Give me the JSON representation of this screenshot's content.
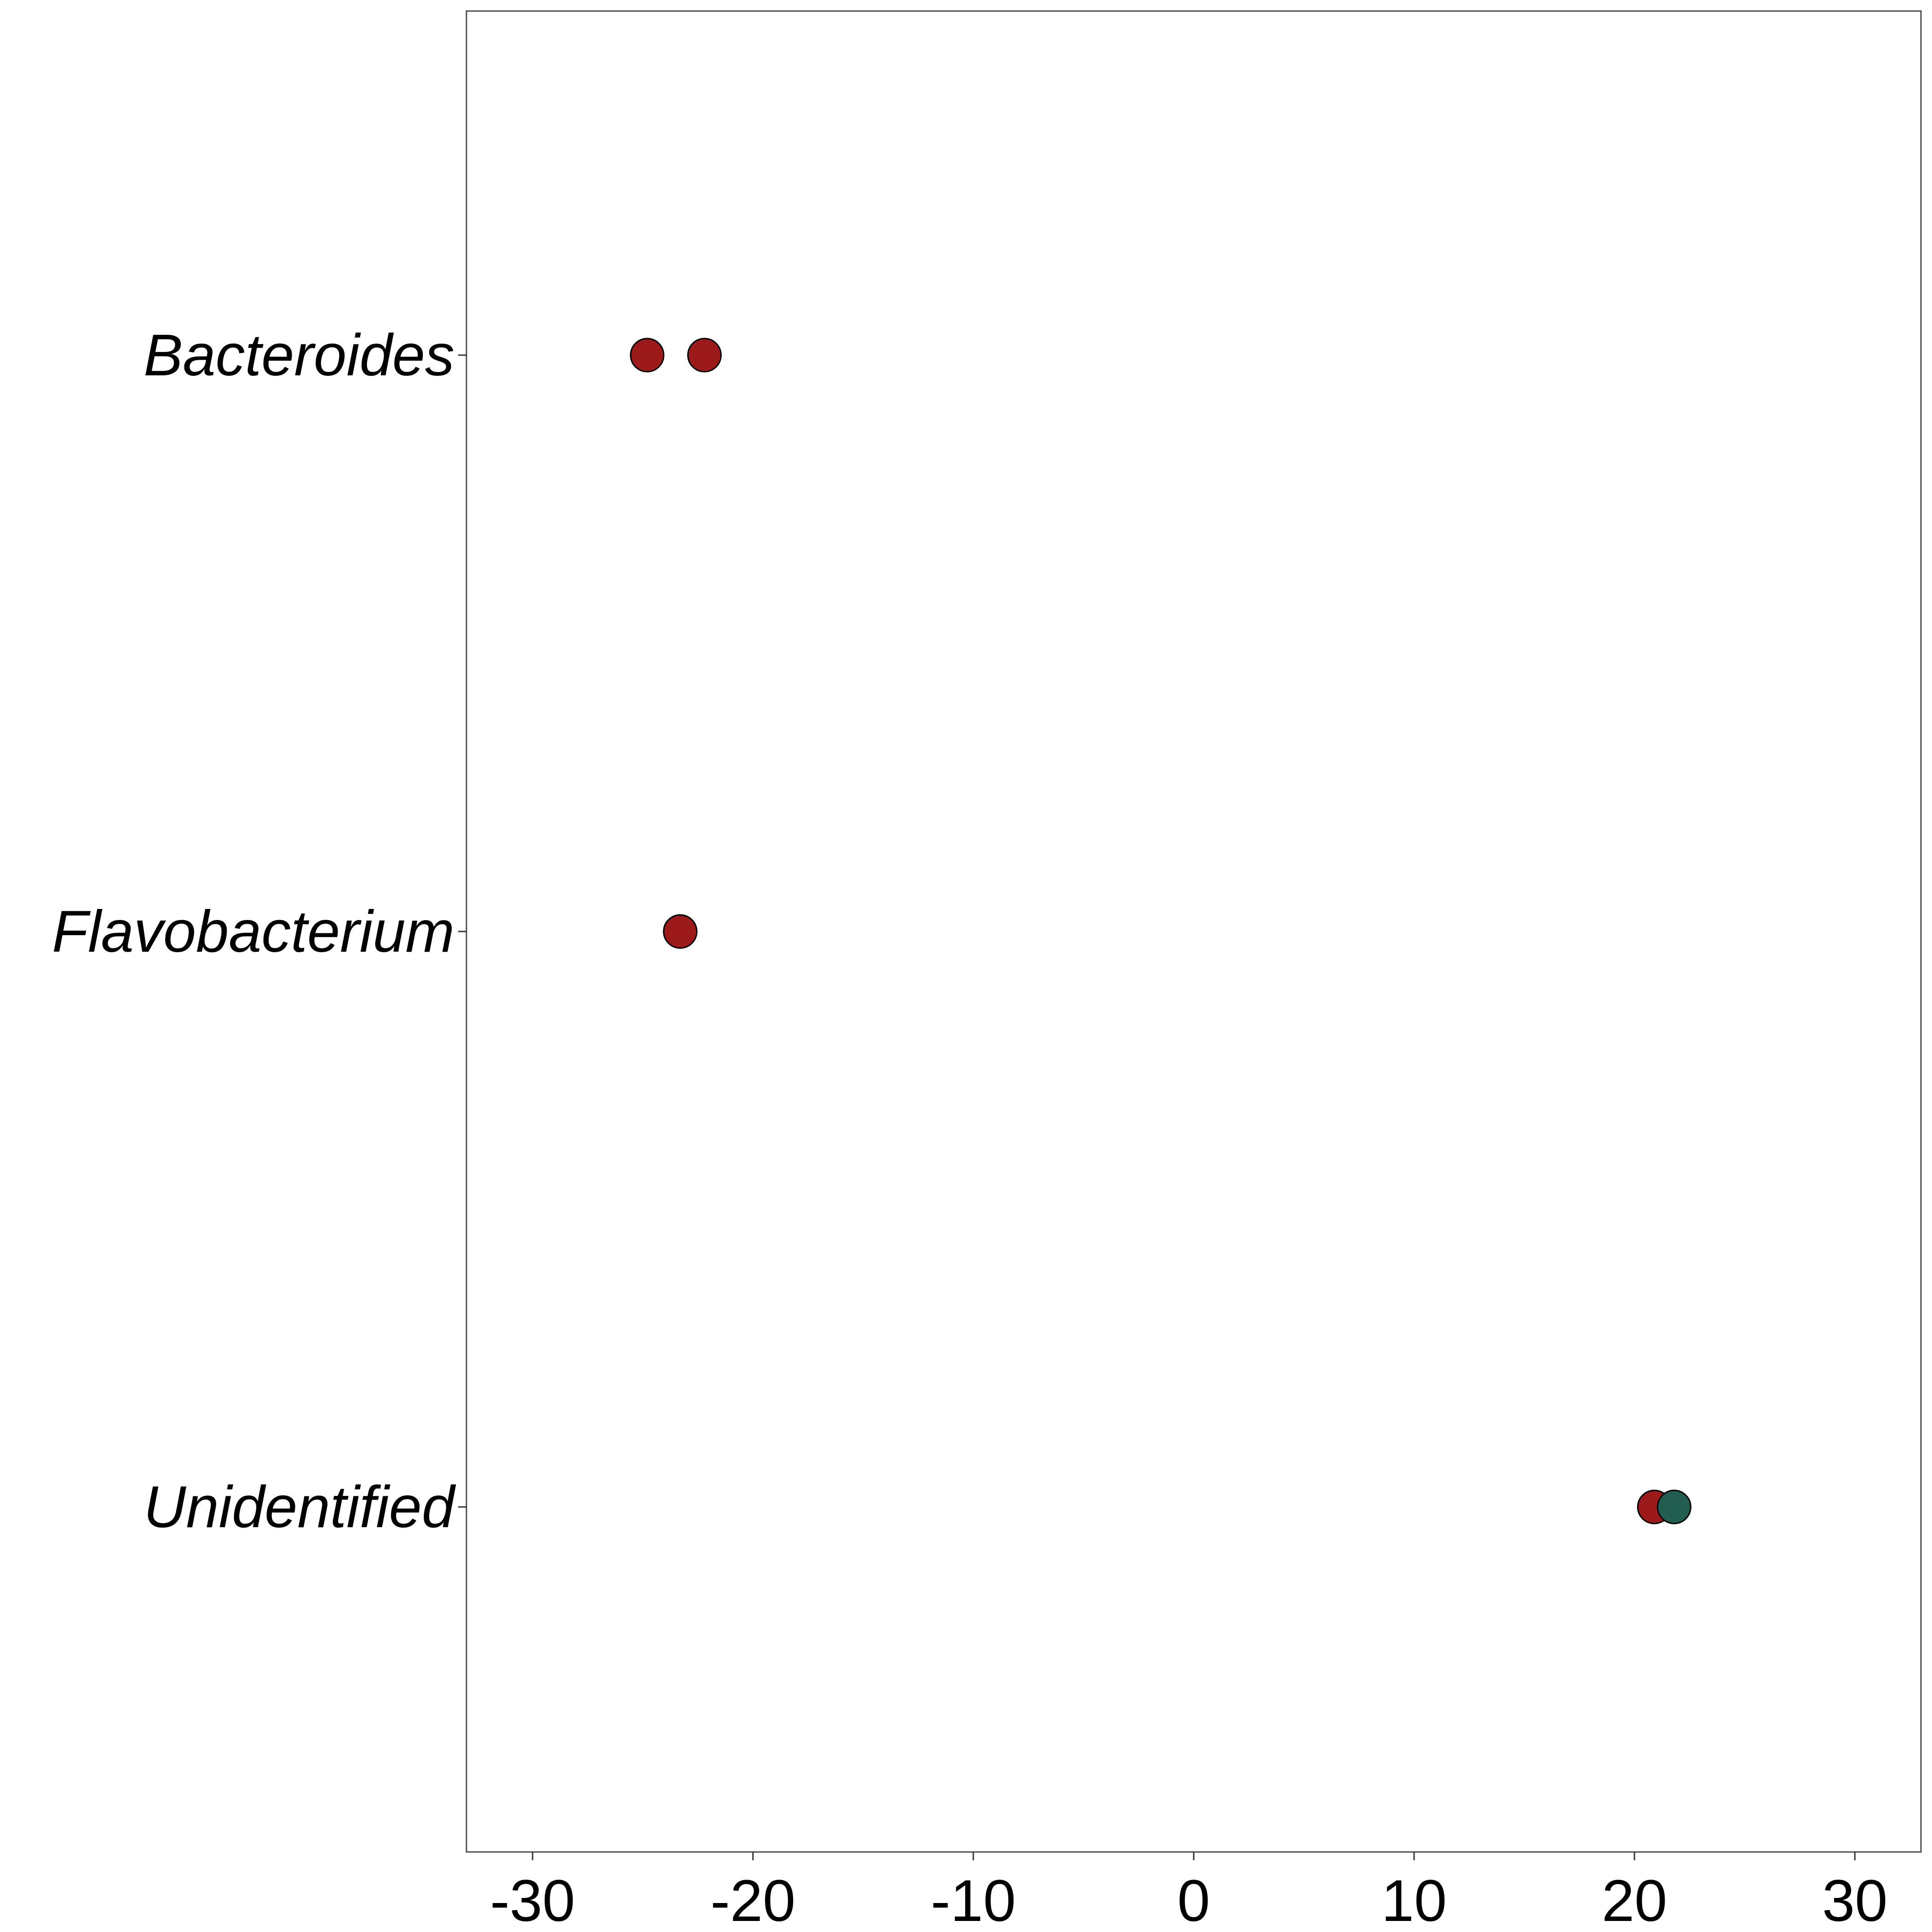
{
  "chart_data": {
    "type": "scatter",
    "title": "",
    "xlabel": "",
    "ylabel": "",
    "xlim": [
      -33,
      33
    ],
    "x_ticks": [
      -30,
      -20,
      -10,
      0,
      10,
      20,
      30
    ],
    "x_tick_labels": [
      "-30",
      "-20",
      "-10",
      "0",
      "10",
      "20",
      "30"
    ],
    "categories": [
      "Bacteroides",
      "Flavobacterium",
      "Unidentified"
    ],
    "grid": false,
    "legend": "none",
    "points": [
      {
        "category": "Bacteroides",
        "x": -24.8,
        "color": "#9c1a1a"
      },
      {
        "category": "Bacteroides",
        "x": -22.2,
        "color": "#9c1a1a"
      },
      {
        "category": "Flavobacterium",
        "x": -23.3,
        "color": "#9c1a1a"
      },
      {
        "category": "Unidentified",
        "x": 20.9,
        "color": "#9c1a1a"
      },
      {
        "category": "Unidentified",
        "x": 21.8,
        "color": "#215e51"
      }
    ]
  }
}
